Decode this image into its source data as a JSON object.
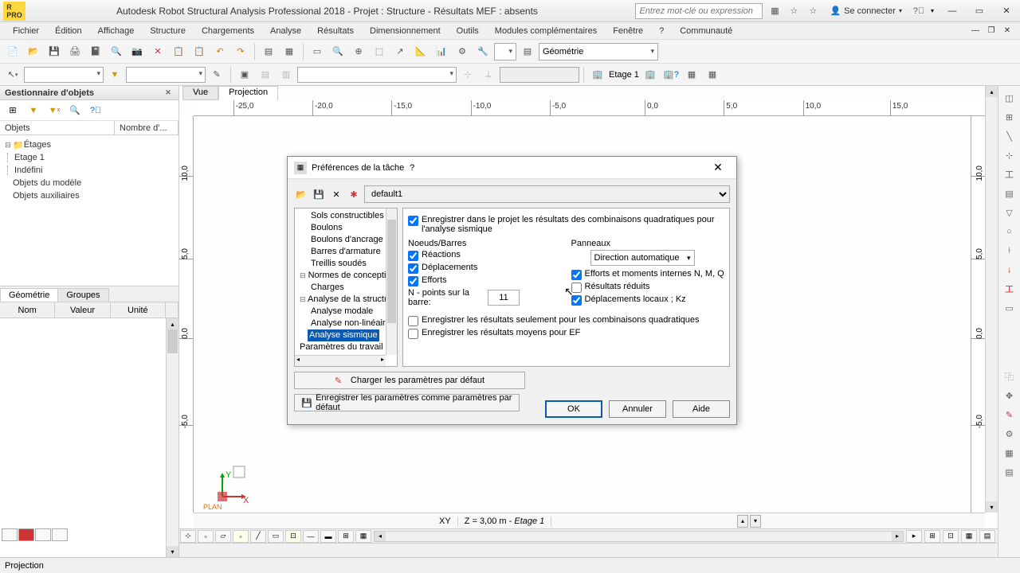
{
  "title": "Autodesk Robot Structural Analysis Professional 2018 - Projet : Structure - Résultats MEF : absents",
  "search_placeholder": "Entrez mot-clé ou expression",
  "signin": "Se connecter",
  "menu": [
    "Fichier",
    "Édition",
    "Affichage",
    "Structure",
    "Chargements",
    "Analyse",
    "Résultats",
    "Dimensionnement",
    "Outils",
    "Modules complémentaires",
    "Fenêtre",
    "?",
    "Communauté"
  ],
  "toolbar_combo_geo": "Géométrie",
  "toolbar2_etage": "Etage 1",
  "left_panel": {
    "title": "Gestionnaire d'objets",
    "cols": [
      "Objets",
      "Nombre d'..."
    ],
    "tree": [
      {
        "exp": "⊟",
        "label": "Étages",
        "pad": 0,
        "icon": "📁"
      },
      {
        "exp": "",
        "label": "Etage 1",
        "pad": 1
      },
      {
        "exp": "",
        "label": "Indéfini",
        "pad": 1
      },
      {
        "exp": "",
        "label": "Objets du modèle",
        "pad": 0
      },
      {
        "exp": "",
        "label": "Objets auxiliaires",
        "pad": 0
      }
    ],
    "tabs": [
      "Géométrie",
      "Groupes"
    ],
    "grid_cols": [
      "Nom",
      "Valeur",
      "Unité"
    ]
  },
  "viewport": {
    "tabs": [
      "Vue",
      "Projection"
    ],
    "h_ticks": [
      {
        "pos": 5,
        "label": "-25,0"
      },
      {
        "pos": 15,
        "label": "-20,0"
      },
      {
        "pos": 25,
        "label": "-15,0"
      },
      {
        "pos": 35,
        "label": "-10,0"
      },
      {
        "pos": 45,
        "label": "-5,0"
      },
      {
        "pos": 57,
        "label": "0,0"
      },
      {
        "pos": 67,
        "label": "5,0"
      },
      {
        "pos": 77,
        "label": "10,0"
      },
      {
        "pos": 88,
        "label": "15,0"
      }
    ],
    "v_ticks": [
      {
        "pos": 78,
        "label": "-5,0"
      },
      {
        "pos": 56,
        "label": "0,0"
      },
      {
        "pos": 36,
        "label": "5,0"
      },
      {
        "pos": 15,
        "label": "10,0"
      }
    ],
    "status_plane": "XY",
    "status_z": "Z = 3,00 m",
    "status_etage": "Etage 1",
    "plan_label": "PLAN"
  },
  "dialog": {
    "title": "Préférences de la tâche",
    "preset": "default1",
    "tree": [
      {
        "label": "Sols constructibles",
        "lvl": 2,
        "exp": ""
      },
      {
        "label": "Boulons",
        "lvl": 2
      },
      {
        "label": "Boulons d'ancrage",
        "lvl": 2
      },
      {
        "label": "Barres d'armature",
        "lvl": 2
      },
      {
        "label": "Treillis soudés",
        "lvl": 2
      },
      {
        "label": "Normes de conception",
        "lvl": 1,
        "exp": "⊟"
      },
      {
        "label": "Charges",
        "lvl": 2
      },
      {
        "label": "Analyse de la structure",
        "lvl": 1,
        "exp": "⊟"
      },
      {
        "label": "Analyse modale",
        "lvl": 2
      },
      {
        "label": "Analyse non-linéaire",
        "lvl": 2
      },
      {
        "label": "Analyse sismique",
        "lvl": 2,
        "sel": true
      },
      {
        "label": "Paramètres du travail",
        "lvl": 1,
        "exp": ""
      }
    ],
    "chk_enregistrer": "Enregistrer dans le projet les résultats des combinaisons quadratiques pour l'analyse sismique",
    "sec_noeuds": "Noeuds/Barres",
    "sec_panneaux": "Panneaux",
    "chk_reactions": "Réactions",
    "chk_deplacements": "Déplacements",
    "chk_efforts": "Efforts",
    "lbl_npoints": "N - points sur la barre:",
    "val_npoints": "11",
    "combo_direction": "Direction automatique",
    "chk_efforts_moments": "Efforts et moments internes N, M, Q",
    "chk_resultats_reduits": "Résultats réduits",
    "chk_depl_locaux": "Déplacements locaux ;  Kz",
    "chk_quad": "Enregistrer les résultats seulement pour les combinaisons quadratiques",
    "chk_moyens": "Enregistrer les résultats moyens pour EF",
    "btn_charger": "Charger les paramètres par défaut",
    "btn_save_default": "Enregistrer les paramètres comme paramètres par défaut",
    "btn_ok": "OK",
    "btn_annuler": "Annuler",
    "btn_aide": "Aide"
  },
  "statusbar": "Projection"
}
